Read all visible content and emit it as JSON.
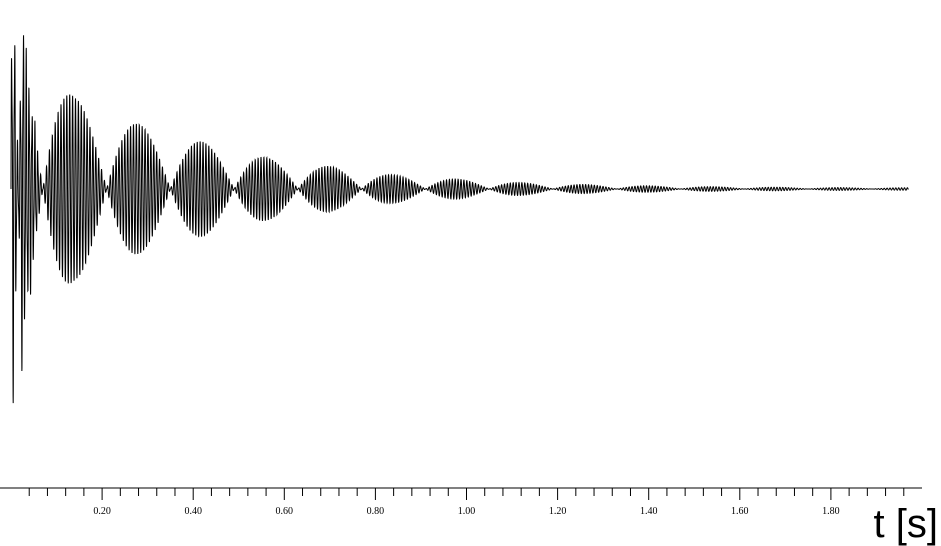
{
  "chart_data": {
    "type": "line",
    "title": "",
    "xlabel": "t [s]",
    "ylabel": "",
    "xlim": [
      0.0,
      2.0
    ],
    "ylim": [
      -1.0,
      1.0
    ],
    "grid": false,
    "legend": "none",
    "x_ticks_major": [
      0.2,
      0.4,
      0.6,
      0.8,
      1.0,
      1.2,
      1.4,
      1.6,
      1.8
    ],
    "x_tick_labels": [
      "0.20",
      "0.40",
      "0.60",
      "0.80",
      "1.00",
      "1.20",
      "1.40",
      "1.60",
      "1.80"
    ],
    "x_ticks_minor_step": 0.04,
    "series": [
      {
        "description": "",
        "envelope_peaks": [
          {
            "t": 0.0,
            "amplitude": 1.0
          },
          {
            "t": 0.14,
            "amplitude": 0.52
          },
          {
            "t": 0.28,
            "amplitude": 0.37
          },
          {
            "t": 0.42,
            "amplitude": 0.27
          },
          {
            "t": 0.56,
            "amplitude": 0.18
          },
          {
            "t": 0.7,
            "amplitude": 0.13
          },
          {
            "t": 0.84,
            "amplitude": 0.08
          },
          {
            "t": 0.99,
            "amplitude": 0.055
          },
          {
            "t": 1.13,
            "amplitude": 0.035
          },
          {
            "t": 1.27,
            "amplitude": 0.025
          },
          {
            "t": 1.41,
            "amplitude": 0.018
          },
          {
            "t": 1.55,
            "amplitude": 0.013
          },
          {
            "t": 1.69,
            "amplitude": 0.01
          },
          {
            "t": 1.83,
            "amplitude": 0.008
          },
          {
            "t": 1.97,
            "amplitude": 0.007
          }
        ],
        "beat_nodes_t": [
          0.07,
          0.21,
          0.35,
          0.49,
          0.63,
          0.77,
          0.91,
          1.06,
          1.2,
          1.34,
          1.48,
          1.62,
          1.76,
          1.9
        ],
        "carrier_cycles_per_beat": 22,
        "color": "#000000"
      }
    ]
  }
}
